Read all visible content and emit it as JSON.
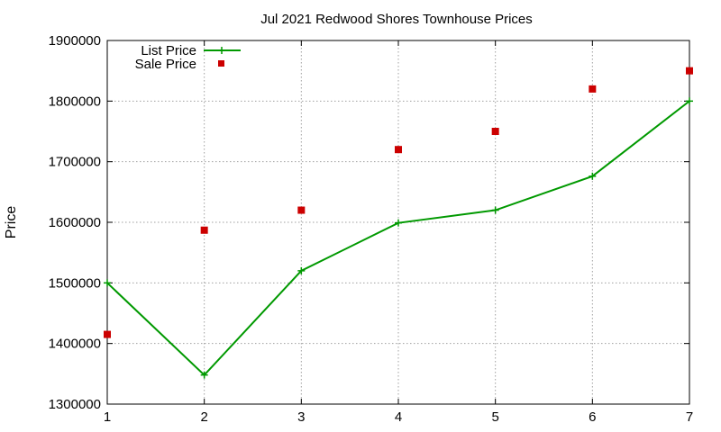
{
  "chart_data": {
    "type": "line",
    "title": "Jul 2021 Redwood Shores Townhouse Prices",
    "xlabel": "",
    "ylabel": "Price",
    "x": [
      1,
      2,
      3,
      4,
      5,
      6,
      7
    ],
    "xlim": [
      1,
      7
    ],
    "ylim": [
      1300000,
      1900000
    ],
    "xticks": [
      "1",
      "2",
      "3",
      "4",
      "5",
      "6",
      "7"
    ],
    "yticks": [
      "1300000",
      "1400000",
      "1500000",
      "1600000",
      "1700000",
      "1800000",
      "1900000"
    ],
    "grid": true,
    "legend_position": "top-left",
    "series": [
      {
        "name": "List Price",
        "kind": "line-with-plus-markers",
        "color": "#009900",
        "values": [
          1500000,
          1348000,
          1520000,
          1599000,
          1620000,
          1676000,
          1800000
        ]
      },
      {
        "name": "Sale Price",
        "kind": "square-markers",
        "color": "#cc0000",
        "values": [
          1415000,
          1587000,
          1620000,
          1720000,
          1750000,
          1820000,
          1850000
        ]
      }
    ]
  }
}
